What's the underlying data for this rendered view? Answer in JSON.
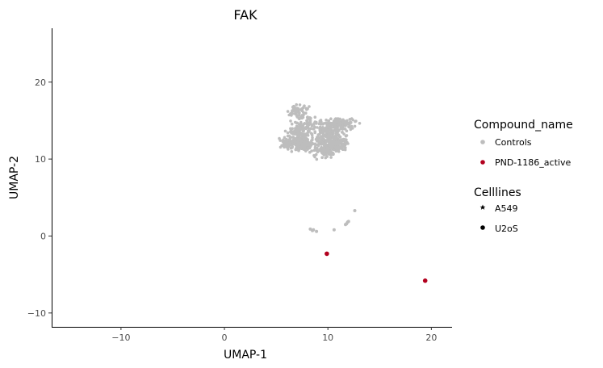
{
  "chart_data": {
    "type": "scatter",
    "title": "FAK",
    "xlabel": "UMAP-1",
    "ylabel": "UMAP-2",
    "xlim": [
      -16.7,
      22
    ],
    "ylim": [
      -11.8,
      27
    ],
    "x_ticks": [
      -10,
      0,
      10,
      20
    ],
    "y_ticks": [
      -10,
      0,
      10,
      20
    ],
    "x_tick_labels": [
      "−10",
      "0",
      "10",
      "20"
    ],
    "y_tick_labels": [
      "−10",
      "0",
      "10",
      "20"
    ],
    "grid": false,
    "legend_position": "right",
    "legends": [
      {
        "title": "Compound_name",
        "entries": [
          {
            "label": "Controls",
            "color": "#bdbdbd",
            "shape": "circle"
          },
          {
            "label": "PND-1186_active",
            "color": "#b2001e",
            "shape": "circle"
          }
        ]
      },
      {
        "title": "Celllines",
        "entries": [
          {
            "label": "A549",
            "color": "#000000",
            "shape": "star"
          },
          {
            "label": "U2oS",
            "color": "#000000",
            "shape": "circle"
          }
        ]
      }
    ],
    "series": [
      {
        "name": "Controls",
        "color": "#bdbdbd",
        "clusters": [
          {
            "cx": 7.3,
            "cy": 12.0,
            "sx": 0.9,
            "sy": 0.55,
            "n": 180
          },
          {
            "cx": 7.1,
            "cy": 13.5,
            "sx": 0.6,
            "sy": 0.7,
            "n": 70
          },
          {
            "cx": 7.0,
            "cy": 16.2,
            "sx": 0.6,
            "sy": 0.5,
            "n": 60
          },
          {
            "cx": 8.0,
            "cy": 14.3,
            "sx": 0.6,
            "sy": 0.9,
            "n": 60
          },
          {
            "cx": 10.2,
            "cy": 13.2,
            "sx": 0.9,
            "sy": 1.3,
            "n": 260
          },
          {
            "cx": 11.4,
            "cy": 14.7,
            "sx": 0.8,
            "sy": 0.4,
            "n": 90
          },
          {
            "cx": 9.9,
            "cy": 11.2,
            "sx": 0.7,
            "sy": 0.6,
            "n": 110
          },
          {
            "cx": 11.1,
            "cy": 12.0,
            "sx": 0.5,
            "sy": 0.5,
            "n": 70
          },
          {
            "cx": 5.9,
            "cy": 12.0,
            "sx": 0.3,
            "sy": 0.5,
            "n": 40
          }
        ],
        "points": [
          [
            12.6,
            3.3
          ],
          [
            11.8,
            1.6
          ],
          [
            11.9,
            1.8
          ],
          [
            11.7,
            1.5
          ],
          [
            12.0,
            1.9
          ],
          [
            8.3,
            0.9
          ],
          [
            8.6,
            0.8
          ],
          [
            8.9,
            0.6
          ],
          [
            8.5,
            0.7
          ],
          [
            10.6,
            0.8
          ]
        ]
      },
      {
        "name": "PND-1186_active",
        "color": "#b2001e",
        "points": [
          [
            9.9,
            -2.3
          ],
          [
            19.4,
            -5.8
          ]
        ]
      }
    ]
  }
}
